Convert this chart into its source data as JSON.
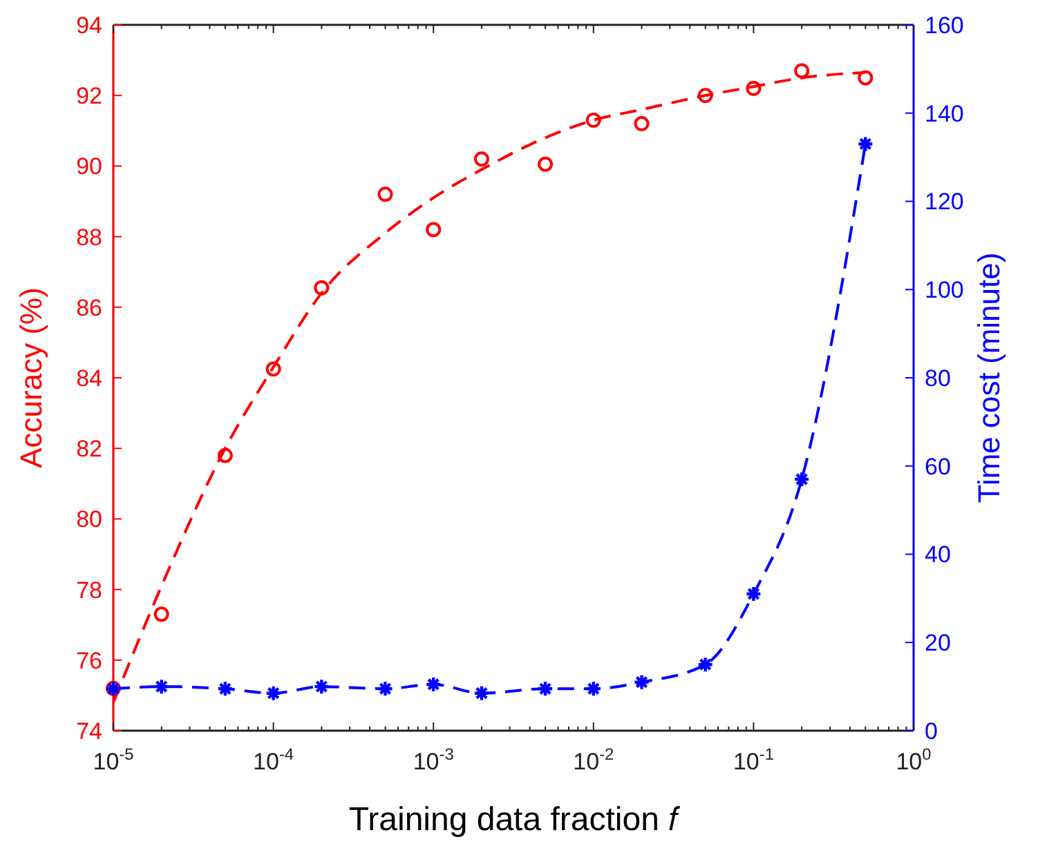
{
  "chart_data": {
    "type": "scatter",
    "xlabel": "Training data fraction 𝑓",
    "ylabel": "Accuracy (%)",
    "y2label": "Time cost (minute)",
    "log": "x",
    "grid": false,
    "x": [
      1e-05,
      2e-05,
      5e-05,
      0.0001,
      0.0002,
      0.0005,
      0.001,
      0.002,
      0.005,
      0.01,
      0.02,
      0.05,
      0.1,
      0.2,
      0.5
    ],
    "xlim": [
      1e-05,
      1
    ],
    "xticks": [
      {
        "value": 1e-05,
        "label": "10$^{-5}$"
      },
      {
        "value": 0.0001,
        "label": "10$^{-4}$"
      },
      {
        "value": 0.001,
        "label": "10$^{-3}$"
      },
      {
        "value": 0.01,
        "label": "10$^{-2}$"
      },
      {
        "value": 0.1,
        "label": "10$^{-1}$"
      },
      {
        "value": 1,
        "label": "10$^{0}$"
      }
    ],
    "ylim": [
      74,
      94
    ],
    "yticks": [
      74,
      76,
      78,
      80,
      82,
      84,
      86,
      88,
      90,
      92,
      94
    ],
    "y2lim": [
      0,
      160
    ],
    "y2ticks": [
      0,
      20,
      40,
      60,
      80,
      100,
      120,
      140,
      160
    ],
    "series": [
      {
        "type": "scatter",
        "color": "#ff0000",
        "marker": "circle",
        "values": [
          75.2,
          77.3,
          81.8,
          84.25,
          86.55,
          89.2,
          88.2,
          90.2,
          90.05,
          91.3,
          91.2,
          92.0,
          92.2,
          92.7,
          92.5
        ]
      },
      {
        "type": "line",
        "color": "#ff0000",
        "marker": "none",
        "line_style": "dashed",
        "x": [
          1e-05,
          2e-05,
          5e-05,
          0.0001,
          0.0002,
          0.0005,
          0.001,
          0.002,
          0.005,
          0.01,
          0.02,
          0.05,
          0.1,
          0.2,
          0.5
        ],
        "values": [
          74.8,
          78.1,
          82.0,
          84.3,
          86.4,
          88.1,
          89.1,
          89.9,
          90.8,
          91.3,
          91.6,
          92.0,
          92.25,
          92.5,
          92.65
        ]
      },
      {
        "type": "line",
        "color": "#0000ff",
        "marker": "cross",
        "line_style": "dashed",
        "axis": "y2",
        "values": [
          9.5,
          10,
          9.5,
          8.5,
          10,
          9.5,
          10.5,
          8.5,
          9.5,
          9.5,
          11,
          15,
          31,
          57,
          133
        ]
      }
    ]
  }
}
